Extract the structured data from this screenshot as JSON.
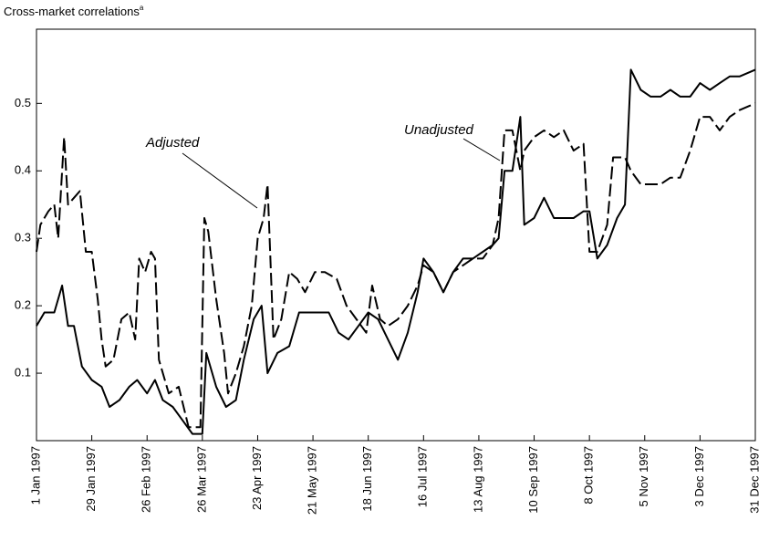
{
  "chart_data": {
    "type": "line",
    "title": "Cross-market correlations",
    "title_superscript": "a",
    "xlim": [
      "1997-01-01",
      "1997-12-31"
    ],
    "xticks": [
      {
        "value": "1997-01-01",
        "label": "1 Jan 1997"
      },
      {
        "value": "1997-01-29",
        "label": "29 Jan 1997"
      },
      {
        "value": "1997-02-26",
        "label": "26 Feb 1997"
      },
      {
        "value": "1997-03-26",
        "label": "26 Mar 1997"
      },
      {
        "value": "1997-04-23",
        "label": "23 Apr 1997"
      },
      {
        "value": "1997-05-21",
        "label": "21 May 1997"
      },
      {
        "value": "1997-06-18",
        "label": "18 Jun 1997"
      },
      {
        "value": "1997-07-16",
        "label": "16 Jul 1997"
      },
      {
        "value": "1997-08-13",
        "label": "13 Aug 1997"
      },
      {
        "value": "1997-09-10",
        "label": "10 Sep 1997"
      },
      {
        "value": "1997-10-08",
        "label": "8 Oct 1997"
      },
      {
        "value": "1997-11-05",
        "label": "5 Nov 1997"
      },
      {
        "value": "1997-12-03",
        "label": "3 Dec 1997"
      },
      {
        "value": "1997-12-31",
        "label": "31 Dec 1997"
      }
    ],
    "ylim": [
      0,
      0.61
    ],
    "yticks": [
      0.1,
      0.2,
      0.3,
      0.4,
      0.5
    ],
    "series": [
      {
        "name": "Adjusted",
        "color": "#000000",
        "dashed": true,
        "x": [
          "1997-01-01",
          "1997-01-03",
          "1997-01-07",
          "1997-01-10",
          "1997-01-12",
          "1997-01-14",
          "1997-01-15",
          "1997-01-17",
          "1997-01-20",
          "1997-01-23",
          "1997-01-26",
          "1997-01-29",
          "1997-02-01",
          "1997-02-03",
          "1997-02-05",
          "1997-02-09",
          "1997-02-13",
          "1997-02-17",
          "1997-02-20",
          "1997-02-22",
          "1997-02-25",
          "1997-02-28",
          "1997-03-02",
          "1997-03-04",
          "1997-03-09",
          "1997-03-14",
          "1997-03-19",
          "1997-03-25",
          "1997-03-27",
          "1997-03-29",
          "1997-04-02",
          "1997-04-06",
          "1997-04-08",
          "1997-04-12",
          "1997-04-16",
          "1997-04-20",
          "1997-04-23",
          "1997-04-26",
          "1997-04-28",
          "1997-05-01",
          "1997-05-05",
          "1997-05-09",
          "1997-05-13",
          "1997-05-17",
          "1997-05-22",
          "1997-05-27",
          "1997-06-02",
          "1997-06-07",
          "1997-06-12",
          "1997-06-17",
          "1997-06-20",
          "1997-06-24",
          "1997-06-28",
          "1997-07-03",
          "1997-07-08",
          "1997-07-13",
          "1997-07-16",
          "1997-07-21",
          "1997-07-26",
          "1997-07-31",
          "1997-08-05",
          "1997-08-10",
          "1997-08-15",
          "1997-08-20",
          "1997-08-23",
          "1997-08-26",
          "1997-08-30",
          "1997-09-03",
          "1997-09-05",
          "1997-09-10",
          "1997-09-15",
          "1997-09-20",
          "1997-09-25",
          "1997-09-30",
          "1997-10-05",
          "1997-10-08",
          "1997-10-12",
          "1997-10-17",
          "1997-10-20",
          "1997-10-26",
          "1997-10-29",
          "1997-11-03",
          "1997-11-08",
          "1997-11-13",
          "1997-11-18",
          "1997-11-23",
          "1997-11-28",
          "1997-12-03",
          "1997-12-08",
          "1997-12-13",
          "1997-12-18",
          "1997-12-23",
          "1997-12-31"
        ],
        "values": [
          0.28,
          0.32,
          0.34,
          0.35,
          0.3,
          0.4,
          0.45,
          0.35,
          0.36,
          0.37,
          0.28,
          0.28,
          0.21,
          0.15,
          0.11,
          0.12,
          0.18,
          0.19,
          0.15,
          0.27,
          0.25,
          0.28,
          0.27,
          0.12,
          0.07,
          0.08,
          0.02,
          0.02,
          0.33,
          0.31,
          0.21,
          0.13,
          0.07,
          0.1,
          0.14,
          0.2,
          0.3,
          0.33,
          0.38,
          0.15,
          0.18,
          0.25,
          0.24,
          0.22,
          0.25,
          0.25,
          0.24,
          0.2,
          0.18,
          0.16,
          0.23,
          0.18,
          0.17,
          0.18,
          0.2,
          0.23,
          0.26,
          0.25,
          0.22,
          0.25,
          0.26,
          0.27,
          0.27,
          0.29,
          0.33,
          0.46,
          0.46,
          0.4,
          0.43,
          0.45,
          0.46,
          0.45,
          0.46,
          0.43,
          0.44,
          0.28,
          0.28,
          0.32,
          0.42,
          0.42,
          0.4,
          0.38,
          0.38,
          0.38,
          0.39,
          0.39,
          0.43,
          0.48,
          0.48,
          0.46,
          0.48,
          0.49,
          0.5
        ]
      },
      {
        "name": "Unadjusted",
        "color": "#000000",
        "dashed": false,
        "x": [
          "1997-01-01",
          "1997-01-05",
          "1997-01-10",
          "1997-01-14",
          "1997-01-17",
          "1997-01-20",
          "1997-01-24",
          "1997-01-29",
          "1997-02-03",
          "1997-02-07",
          "1997-02-12",
          "1997-02-17",
          "1997-02-21",
          "1997-02-26",
          "1997-03-02",
          "1997-03-06",
          "1997-03-11",
          "1997-03-16",
          "1997-03-21",
          "1997-03-26",
          "1997-03-28",
          "1997-04-02",
          "1997-04-07",
          "1997-04-12",
          "1997-04-16",
          "1997-04-21",
          "1997-04-25",
          "1997-04-28",
          "1997-05-03",
          "1997-05-09",
          "1997-05-14",
          "1997-05-19",
          "1997-05-24",
          "1997-05-29",
          "1997-06-03",
          "1997-06-08",
          "1997-06-13",
          "1997-06-18",
          "1997-06-23",
          "1997-06-28",
          "1997-07-03",
          "1997-07-08",
          "1997-07-13",
          "1997-07-16",
          "1997-07-21",
          "1997-07-26",
          "1997-07-31",
          "1997-08-05",
          "1997-08-10",
          "1997-08-15",
          "1997-08-20",
          "1997-08-23",
          "1997-08-26",
          "1997-08-30",
          "1997-09-03",
          "1997-09-05",
          "1997-09-10",
          "1997-09-15",
          "1997-09-20",
          "1997-09-25",
          "1997-09-30",
          "1997-10-05",
          "1997-10-08",
          "1997-10-12",
          "1997-10-17",
          "1997-10-22",
          "1997-10-26",
          "1997-10-29",
          "1997-11-03",
          "1997-11-08",
          "1997-11-13",
          "1997-11-18",
          "1997-11-23",
          "1997-11-28",
          "1997-12-03",
          "1997-12-08",
          "1997-12-13",
          "1997-12-18",
          "1997-12-23",
          "1997-12-31"
        ],
        "values": [
          0.17,
          0.19,
          0.19,
          0.23,
          0.17,
          0.17,
          0.11,
          0.09,
          0.08,
          0.05,
          0.06,
          0.08,
          0.09,
          0.07,
          0.09,
          0.06,
          0.05,
          0.03,
          0.01,
          0.01,
          0.13,
          0.08,
          0.05,
          0.06,
          0.12,
          0.18,
          0.2,
          0.1,
          0.13,
          0.14,
          0.19,
          0.19,
          0.19,
          0.19,
          0.16,
          0.15,
          0.17,
          0.19,
          0.18,
          0.15,
          0.12,
          0.16,
          0.22,
          0.27,
          0.25,
          0.22,
          0.25,
          0.27,
          0.27,
          0.28,
          0.29,
          0.3,
          0.4,
          0.4,
          0.48,
          0.32,
          0.33,
          0.36,
          0.33,
          0.33,
          0.33,
          0.34,
          0.34,
          0.27,
          0.29,
          0.33,
          0.35,
          0.55,
          0.52,
          0.51,
          0.51,
          0.52,
          0.51,
          0.51,
          0.53,
          0.52,
          0.53,
          0.54,
          0.54,
          0.55
        ]
      }
    ]
  }
}
